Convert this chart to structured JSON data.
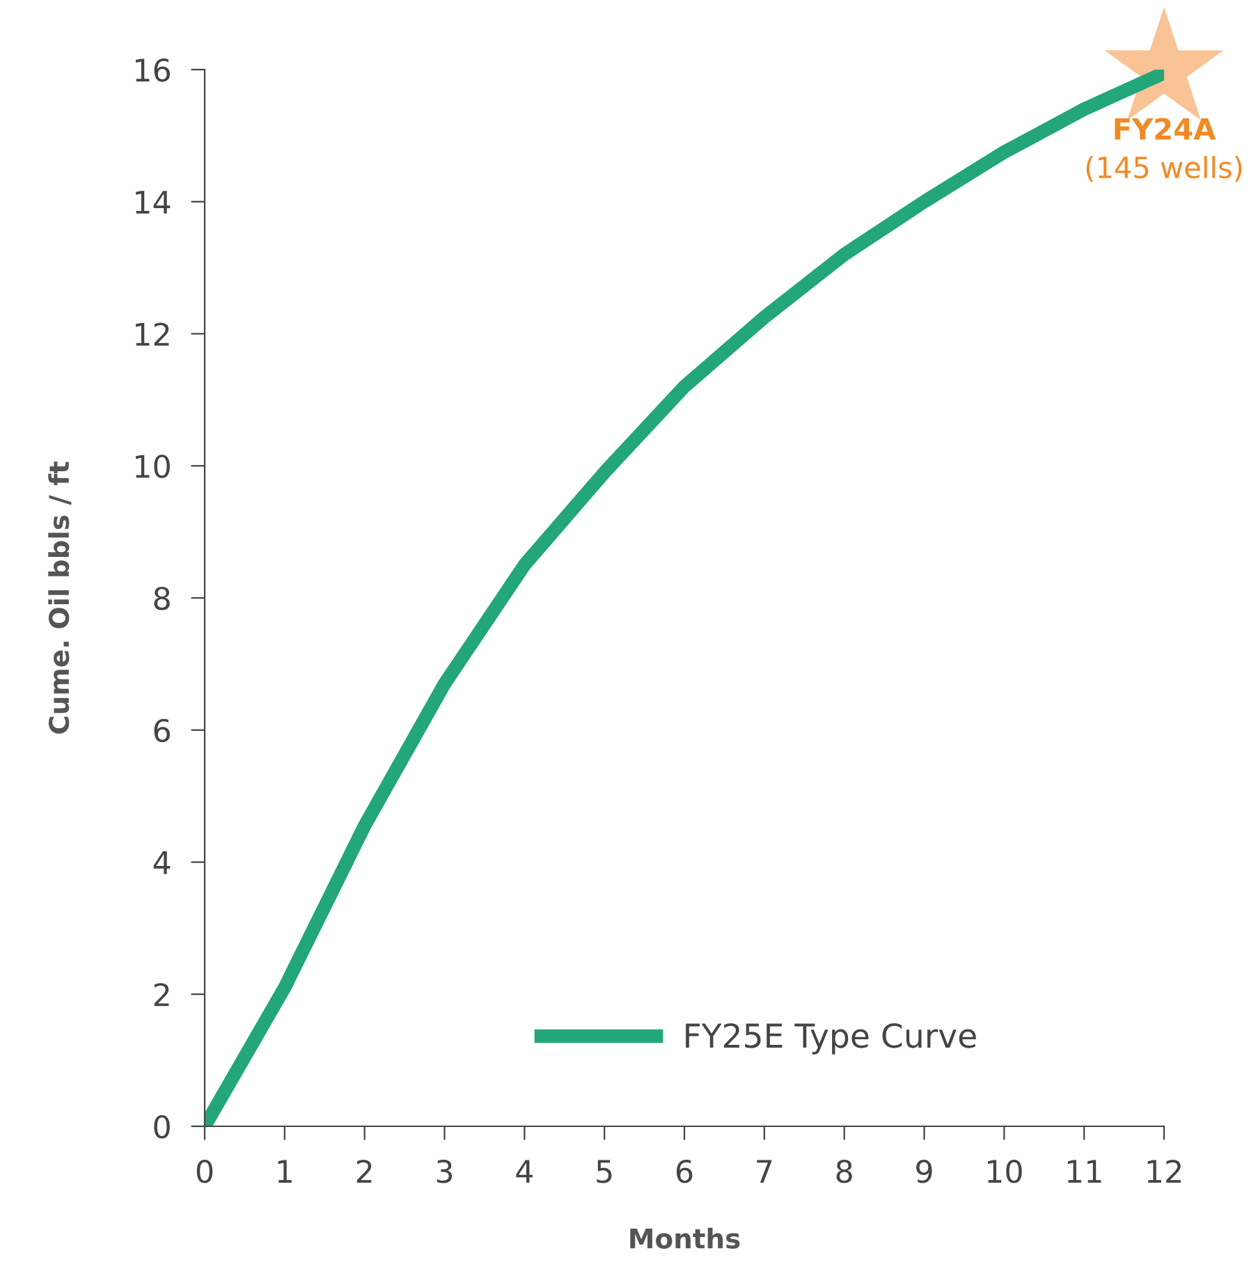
{
  "chart_data": {
    "type": "line",
    "xlabel": "Months",
    "ylabel": "Cume. Oil bbls / ft",
    "x": [
      0,
      1,
      2,
      3,
      4,
      5,
      6,
      7,
      8,
      9,
      10,
      11,
      12
    ],
    "series": [
      {
        "name": "FY25E Type Curve",
        "color": "#22a67a",
        "values": [
          0,
          2.1,
          4.55,
          6.7,
          8.5,
          9.9,
          11.2,
          12.25,
          13.2,
          14.0,
          14.75,
          15.4,
          15.95
        ]
      },
      {
        "type": "scatter",
        "marker": "star",
        "color": "#f7b47a",
        "x": [
          12
        ],
        "values": [
          16
        ]
      }
    ],
    "annotations": [
      {
        "text": "FY24A",
        "x": 12,
        "y": 16
      },
      "(145 wells)"
    ],
    "xlim": [
      0,
      12
    ],
    "ylim": [
      0,
      16
    ],
    "xticks": [
      0,
      1,
      2,
      3,
      4,
      5,
      6,
      7,
      8,
      9,
      10,
      11,
      12
    ],
    "yticks": [
      0,
      2,
      4,
      6,
      8,
      10,
      12,
      14,
      16
    ],
    "grid": false,
    "legend": "bottom right",
    "marker": "none",
    "line_style": "solid"
  }
}
